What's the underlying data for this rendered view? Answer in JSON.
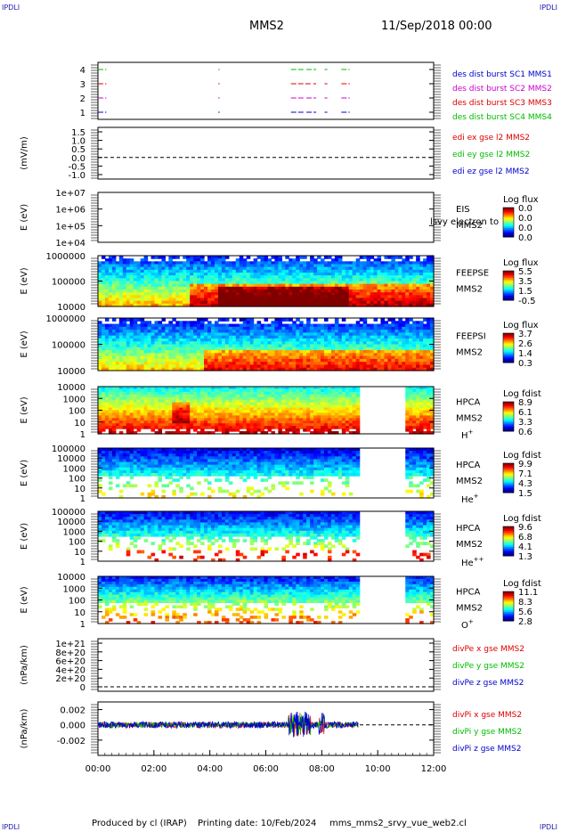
{
  "header": {
    "corner_tl": "IPDLI",
    "corner_tr": "IPDLI",
    "corner_bl": "IPDLI",
    "corner_br": "IPDLI",
    "mission": "MMS2",
    "datetime": "11/Sep/2018 00:00"
  },
  "footer": {
    "produced": "Produced by cl (IRAP)",
    "printing": "Printing date: 10/Feb/2024",
    "file": "mms_mms2_srvy_vue_web2.cl"
  },
  "colors": {
    "mms1": "#0000cc",
    "mms2": "#cc00cc",
    "mms3": "#dd0000",
    "mms4": "#00bb00",
    "x": "#dd0000",
    "y": "#00bb00",
    "z": "#0000cc"
  },
  "chart_data": [
    {
      "id": "burst",
      "type": "scatter",
      "x_range": [
        "00:00",
        "12:00"
      ],
      "ylim": [
        0.5,
        4.5
      ],
      "yticks": [
        "1",
        "2",
        "3",
        "4"
      ],
      "legend": [
        {
          "label": "des dist burst SC1 MMS1",
          "color": "#0000cc"
        },
        {
          "label": "des dist burst SC2 MMS2",
          "color": "#cc00cc"
        },
        {
          "label": "des dist burst SC3 MMS3",
          "color": "#dd0000"
        },
        {
          "label": "des dist burst SC4 MMS4",
          "color": "#00bb00"
        }
      ],
      "series": [
        {
          "level": 4,
          "color": "#00bb00",
          "intervals": [
            [
              0.0,
              0.3
            ],
            [
              4.3,
              4.35
            ],
            [
              6.9,
              7.4
            ],
            [
              7.45,
              7.8
            ],
            [
              8.1,
              8.2
            ],
            [
              8.7,
              9.0
            ]
          ]
        },
        {
          "level": 3,
          "color": "#dd0000",
          "intervals": [
            [
              0.0,
              0.3
            ],
            [
              4.3,
              4.35
            ],
            [
              6.9,
              7.6
            ],
            [
              7.7,
              7.8
            ],
            [
              8.1,
              8.2
            ],
            [
              8.7,
              9.0
            ]
          ]
        },
        {
          "level": 2,
          "color": "#cc00cc",
          "intervals": [
            [
              0.0,
              0.3
            ],
            [
              4.3,
              4.35
            ],
            [
              6.9,
              7.4
            ],
            [
              7.45,
              7.8
            ],
            [
              8.1,
              8.2
            ],
            [
              8.7,
              9.0
            ]
          ]
        },
        {
          "level": 1,
          "color": "#0000cc",
          "intervals": [
            [
              0.0,
              0.3
            ],
            [
              4.3,
              4.35
            ],
            [
              6.9,
              7.4
            ],
            [
              7.45,
              7.8
            ],
            [
              8.1,
              8.2
            ],
            [
              8.7,
              9.0
            ]
          ]
        }
      ]
    },
    {
      "id": "edi",
      "type": "line",
      "ylabel": "(mV/m)",
      "ylim": [
        -1.0,
        1.5
      ],
      "yticks": [
        "1.5",
        "1.0",
        "0.5",
        "0.0",
        "-0.5",
        "-1.0"
      ],
      "dashed_zero": true,
      "legend": [
        {
          "label": "edi ex gse l2 MMS2",
          "color": "#dd0000"
        },
        {
          "label": "edi ey gse l2 MMS2",
          "color": "#00bb00"
        },
        {
          "label": "edi ez gse l2 MMS2",
          "color": "#0000cc"
        }
      ]
    },
    {
      "id": "eis",
      "type": "heatmap",
      "ylabel": "E (eV)",
      "yticks": [
        "1e+07",
        "1e+06",
        "1e+05",
        "1e+04"
      ],
      "instrument": [
        "EIS",
        "MMS2"
      ],
      "overlay_label": "lsvy electron to",
      "colorbar": {
        "title": "Log flux",
        "ticks": [
          "0.0",
          "0.0",
          "0.0",
          "0.0"
        ]
      },
      "data": "empty"
    },
    {
      "id": "feepse",
      "type": "heatmap",
      "ylabel": "E (eV)",
      "yticks": [
        "1000000",
        "100000",
        "10000"
      ],
      "instrument": [
        "FEEPSE",
        "MMS2"
      ],
      "colorbar": {
        "title": "Log flux",
        "ticks": [
          "5.5",
          "3.5",
          "1.5",
          "-0.5"
        ]
      }
    },
    {
      "id": "feepsi",
      "type": "heatmap",
      "ylabel": "E (eV)",
      "yticks": [
        "1000000",
        "100000",
        "10000"
      ],
      "instrument": [
        "FEEPSI",
        "MMS2"
      ],
      "colorbar": {
        "title": "Log flux",
        "ticks": [
          "3.7",
          "2.6",
          "1.4",
          "0.3"
        ]
      }
    },
    {
      "id": "hpca_h",
      "type": "heatmap",
      "ylabel": "E (eV)",
      "yticks": [
        "10000",
        "1000",
        "100",
        "10",
        "1"
      ],
      "instrument": [
        "HPCA",
        "MMS2"
      ],
      "species": "H",
      "charge": "+",
      "gap_hours": [
        9.4,
        11.0
      ],
      "colorbar": {
        "title": "Log fdist",
        "ticks": [
          "8.9",
          "6.1",
          "3.3",
          "0.6"
        ]
      }
    },
    {
      "id": "hpca_he",
      "type": "heatmap",
      "ylabel": "E (eV)",
      "yticks": [
        "100000",
        "10000",
        "1000",
        "100",
        "10",
        "1"
      ],
      "instrument": [
        "HPCA",
        "MMS2"
      ],
      "species": "He",
      "charge": "+",
      "gap_hours": [
        9.4,
        11.0
      ],
      "colorbar": {
        "title": "Log fdist",
        "ticks": [
          "9.9",
          "7.1",
          "4.3",
          "1.5"
        ]
      }
    },
    {
      "id": "hpca_he2",
      "type": "heatmap",
      "ylabel": "E (eV)",
      "yticks": [
        "100000",
        "10000",
        "1000",
        "100",
        "10",
        "1"
      ],
      "instrument": [
        "HPCA",
        "MMS2"
      ],
      "species": "He",
      "charge": "++",
      "gap_hours": [
        9.4,
        11.0
      ],
      "colorbar": {
        "title": "Log fdist",
        "ticks": [
          "9.6",
          "6.8",
          "4.1",
          "1.3"
        ]
      }
    },
    {
      "id": "hpca_o",
      "type": "heatmap",
      "ylabel": "E (eV)",
      "yticks": [
        "10000",
        "1000",
        "100",
        "10",
        "1"
      ],
      "instrument": [
        "HPCA",
        "MMS2"
      ],
      "species": "O",
      "charge": "+",
      "gap_hours": [
        9.4,
        11.0
      ],
      "colorbar": {
        "title": "Log fdist",
        "ticks": [
          "11.1",
          "8.3",
          "5.6",
          "2.8"
        ]
      }
    },
    {
      "id": "divpe",
      "type": "line",
      "ylabel": "(nPa/km)",
      "ylim": [
        0,
        1e+21
      ],
      "yticks": [
        "1e+21",
        "8e+20",
        "6e+20",
        "4e+20",
        "2e+20",
        "0"
      ],
      "dashed_zero": true,
      "legend": [
        {
          "label": "divPe x gse MMS2",
          "color": "#dd0000"
        },
        {
          "label": "divPe y gse MMS2",
          "color": "#00bb00"
        },
        {
          "label": "divPe z gse MMS2",
          "color": "#0000cc"
        }
      ]
    },
    {
      "id": "divpi",
      "type": "line",
      "ylabel": "(nPa/km)",
      "ylim": [
        -0.004,
        0.003
      ],
      "yticks": [
        "0.002",
        "0.000",
        "-0.002"
      ],
      "dashed_zero": true,
      "x_end_hour": 9.3,
      "legend": [
        {
          "label": "divPi x gse MMS2",
          "color": "#dd0000"
        },
        {
          "label": "divPi y gse MMS2",
          "color": "#00bb00"
        },
        {
          "label": "divPi z gse MMS2",
          "color": "#0000cc"
        }
      ]
    }
  ],
  "x_axis": {
    "ticks": [
      "00:00",
      "02:00",
      "04:00",
      "06:00",
      "08:00",
      "10:00",
      "12:00"
    ],
    "range_hours": [
      0,
      12
    ]
  }
}
